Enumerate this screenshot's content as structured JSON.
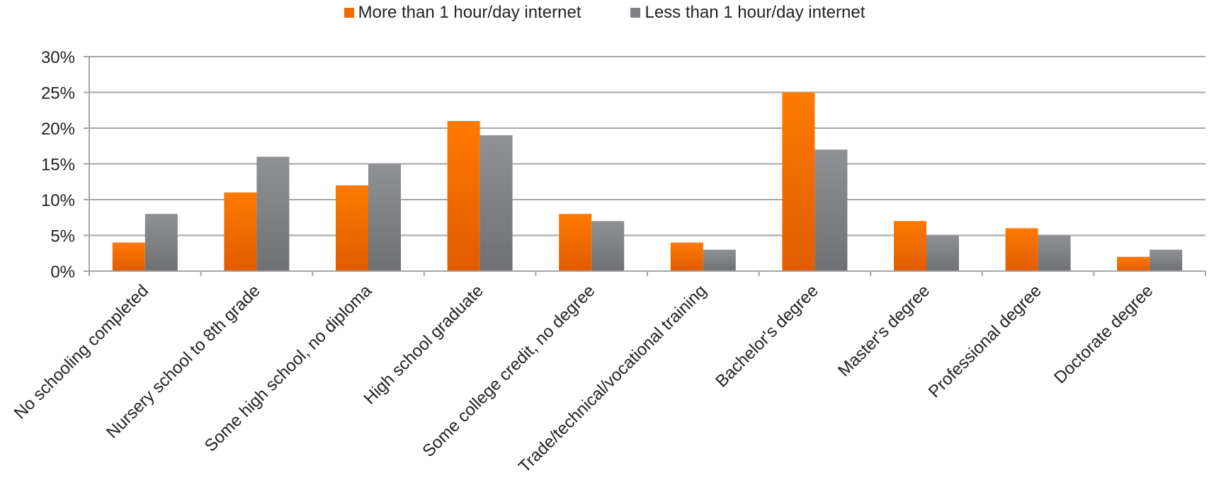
{
  "chart_data": {
    "type": "bar",
    "categories": [
      "No schooling completed",
      "Nursery school to 8th grade",
      "Some high school, no diploma",
      "High school graduate",
      "Some college credit, no degree",
      "Trade/technical/vocational training",
      "Bachelor's degree",
      "Master's degree",
      "Professional degree",
      "Doctorate degree"
    ],
    "series": [
      {
        "name": "More than 1 hour/day internet",
        "color": "#f06a00",
        "values": [
          4,
          11,
          12,
          21,
          8,
          4,
          25,
          7,
          6,
          2
        ]
      },
      {
        "name": "Less than 1 hour/day internet",
        "color": "#7f8083",
        "values": [
          8,
          16,
          15,
          19,
          7,
          3,
          17,
          5,
          5,
          3
        ]
      }
    ],
    "yticks": [
      "0%",
      "5%",
      "10%",
      "15%",
      "20%",
      "25%",
      "30%"
    ],
    "ylim": [
      0,
      30
    ],
    "grid": true,
    "legend_position": "top-center"
  }
}
